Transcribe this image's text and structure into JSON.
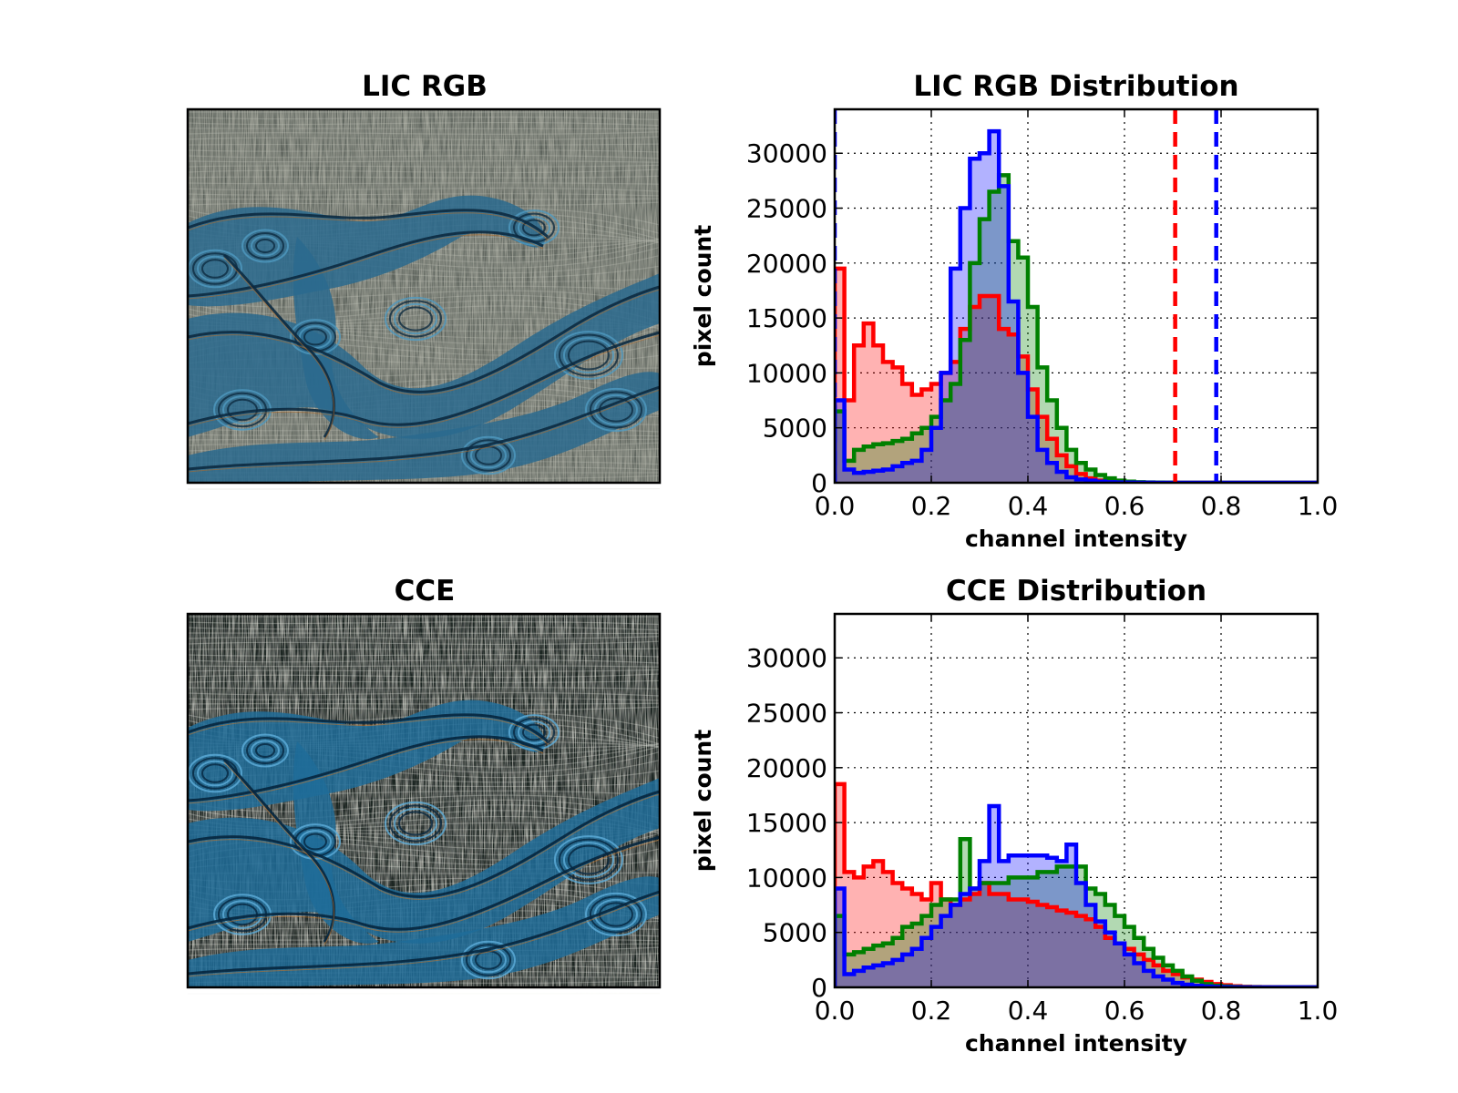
{
  "images": [
    {
      "title": "LIC RGB",
      "palette": {
        "bg": "#9a9d93",
        "light": "#c7c9bf",
        "dark": "#4f5650",
        "flow": "#2a6a8e",
        "flow_dark": "#0c2a40",
        "flow_light": "#4f9ac0",
        "accent": "#b06a2a"
      }
    },
    {
      "title": "CCE",
      "palette": {
        "bg": "#a8aaa3",
        "light": "#f0f1ea",
        "dark": "#1f2624",
        "flow": "#1f6c99",
        "flow_dark": "#05263e",
        "flow_light": "#5eaedb",
        "accent": "#c2742c"
      }
    }
  ],
  "chart_data": [
    {
      "type": "histogram",
      "title": "LIC RGB Distribution",
      "xlabel": "channel intensity",
      "ylabel": "pixel count",
      "xlim": [
        0.0,
        1.0
      ],
      "ylim": [
        0,
        34000
      ],
      "xticks": [
        "0.0",
        "0.2",
        "0.4",
        "0.6",
        "0.8",
        "1.0"
      ],
      "yticks": [
        "0",
        "5000",
        "10000",
        "15000",
        "20000",
        "25000",
        "30000"
      ],
      "grid": true,
      "bin_width": 0.02,
      "series": [
        {
          "color": "#ff0000",
          "fill": "#ff0000",
          "values": [
            19500,
            7500,
            12500,
            14500,
            12500,
            11000,
            10500,
            9000,
            8000,
            8500,
            9000,
            10000,
            11000,
            14000,
            16000,
            17000,
            17000,
            14000,
            13500,
            11500,
            8500,
            6000,
            4000,
            2500,
            1500,
            800,
            400,
            200,
            100,
            50,
            30,
            20,
            10,
            10,
            0,
            0,
            0,
            0,
            0,
            0,
            0,
            0,
            0,
            0,
            0,
            0,
            0,
            0,
            0,
            0
          ]
        },
        {
          "color": "#008000",
          "fill": "#008000",
          "values": [
            6500,
            2000,
            3000,
            3300,
            3500,
            3600,
            3800,
            4000,
            4500,
            5000,
            6000,
            7500,
            9000,
            13000,
            20000,
            24000,
            26500,
            28000,
            22000,
            20500,
            16000,
            10500,
            7500,
            5000,
            3000,
            1800,
            1200,
            700,
            400,
            200,
            100,
            50,
            30,
            20,
            10,
            0,
            0,
            0,
            0,
            0,
            0,
            0,
            0,
            0,
            0,
            0,
            0,
            0,
            0,
            0
          ]
        },
        {
          "color": "#0000ff",
          "fill": "#0000ff",
          "values": [
            7500,
            1200,
            900,
            1000,
            1100,
            1200,
            1500,
            1800,
            2000,
            3000,
            5000,
            10000,
            19500,
            25000,
            29500,
            30000,
            32000,
            27000,
            16500,
            10000,
            6000,
            3000,
            1800,
            1000,
            500,
            300,
            200,
            100,
            50,
            30,
            20,
            10,
            10,
            0,
            0,
            0,
            0,
            0,
            0,
            0,
            0,
            0,
            0,
            0,
            0,
            0,
            0,
            0,
            0,
            0
          ]
        }
      ],
      "vlines": [
        {
          "x": 0.0,
          "color": "#0000ff"
        },
        {
          "x": 0.705,
          "color": "#ff0000"
        },
        {
          "x": 0.79,
          "color": "#0000ff"
        }
      ]
    },
    {
      "type": "histogram",
      "title": "CCE Distribution",
      "xlabel": "channel intensity",
      "ylabel": "pixel count",
      "xlim": [
        0.0,
        1.0
      ],
      "ylim": [
        0,
        34000
      ],
      "xticks": [
        "0.0",
        "0.2",
        "0.4",
        "0.6",
        "0.8",
        "1.0"
      ],
      "yticks": [
        "0",
        "5000",
        "10000",
        "15000",
        "20000",
        "25000",
        "30000"
      ],
      "grid": true,
      "bin_width": 0.02,
      "series": [
        {
          "color": "#ff0000",
          "fill": "#ff0000",
          "values": [
            18500,
            10500,
            10000,
            11000,
            11500,
            10500,
            9500,
            9000,
            8500,
            8000,
            9500,
            8000,
            7500,
            8000,
            8500,
            9500,
            8500,
            8500,
            8000,
            8000,
            7800,
            7500,
            7300,
            7000,
            6800,
            6500,
            6200,
            5500,
            4500,
            4000,
            3500,
            3000,
            2500,
            2000,
            1500,
            1200,
            900,
            700,
            500,
            300,
            200,
            100,
            50,
            30,
            20,
            10,
            0,
            0,
            0,
            0
          ]
        },
        {
          "color": "#008000",
          "fill": "#008000",
          "values": [
            6500,
            3000,
            3200,
            3500,
            3800,
            4000,
            4500,
            5500,
            5800,
            6500,
            7500,
            8000,
            8000,
            13500,
            9000,
            9500,
            9500,
            9500,
            10000,
            10000,
            10000,
            10500,
            10500,
            11000,
            11000,
            11000,
            9000,
            8500,
            7500,
            6500,
            5500,
            4500,
            3500,
            2700,
            2000,
            1500,
            1000,
            600,
            300,
            150,
            80,
            40,
            20,
            10,
            0,
            0,
            0,
            0,
            0,
            0
          ]
        },
        {
          "color": "#0000ff",
          "fill": "#0000ff",
          "values": [
            9000,
            1200,
            1500,
            1800,
            2000,
            2200,
            2500,
            3000,
            3500,
            4500,
            5500,
            6500,
            7500,
            8500,
            9000,
            11500,
            16500,
            11500,
            12000,
            12000,
            12000,
            12000,
            11800,
            11500,
            13000,
            9500,
            7500,
            6000,
            5000,
            4000,
            3000,
            2200,
            1500,
            1000,
            700,
            400,
            250,
            150,
            80,
            40,
            20,
            10,
            0,
            0,
            0,
            0,
            0,
            0,
            0,
            0
          ]
        }
      ],
      "vlines": []
    }
  ]
}
